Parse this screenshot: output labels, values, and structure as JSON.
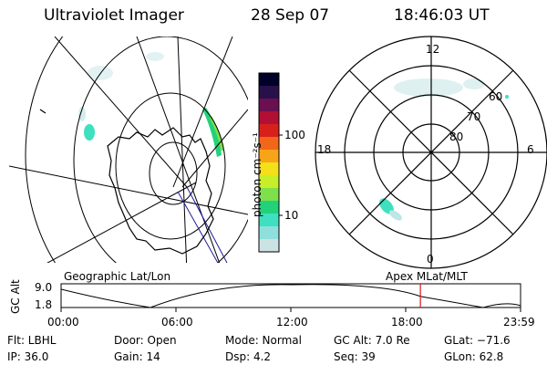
{
  "header": {
    "instrument": "Ultraviolet Imager",
    "date": "28 Sep 07",
    "time": "18:46:03 UT"
  },
  "left_panel": {
    "label": "Geographic Lat/Lon"
  },
  "right_panel": {
    "label": "Apex MLat/MLT",
    "mlt_labels": [
      "12",
      "6",
      "0",
      "18"
    ],
    "lat_labels": [
      "60",
      "70",
      "80"
    ]
  },
  "colorbar": {
    "unit_label": "photon cm⁻²s⁻¹",
    "ticks": [
      "100",
      "10"
    ],
    "colors": [
      "#cde2e2",
      "#8fe0dc",
      "#3ee0c0",
      "#22d27a",
      "#7ee04a",
      "#c8ee2a",
      "#f4e01a",
      "#f7a418",
      "#f2661a",
      "#d8201a",
      "#b01033",
      "#6a1050",
      "#28104a",
      "#000028"
    ]
  },
  "altitude_plot": {
    "axis_label": "GC Alt",
    "y_ticks": [
      "9.0",
      "1.8"
    ],
    "x_ticks": [
      "00:00",
      "06:00",
      "12:00",
      "18:00",
      "23:59"
    ],
    "current_time_fraction": 0.782,
    "marker_color": "#d81818"
  },
  "status": {
    "filter": "Flt: LBHL",
    "door": "Door: Open",
    "mode": "Mode: Normal",
    "gc_alt": "GC Alt: 7.0 Re",
    "glat": "GLat: −71.6",
    "ip": "IP: 36.0",
    "gain": "Gain: 14",
    "dsp": "Dsp:     4.2",
    "seq": "Seq: 39",
    "glon": "GLon:  62.8"
  }
}
